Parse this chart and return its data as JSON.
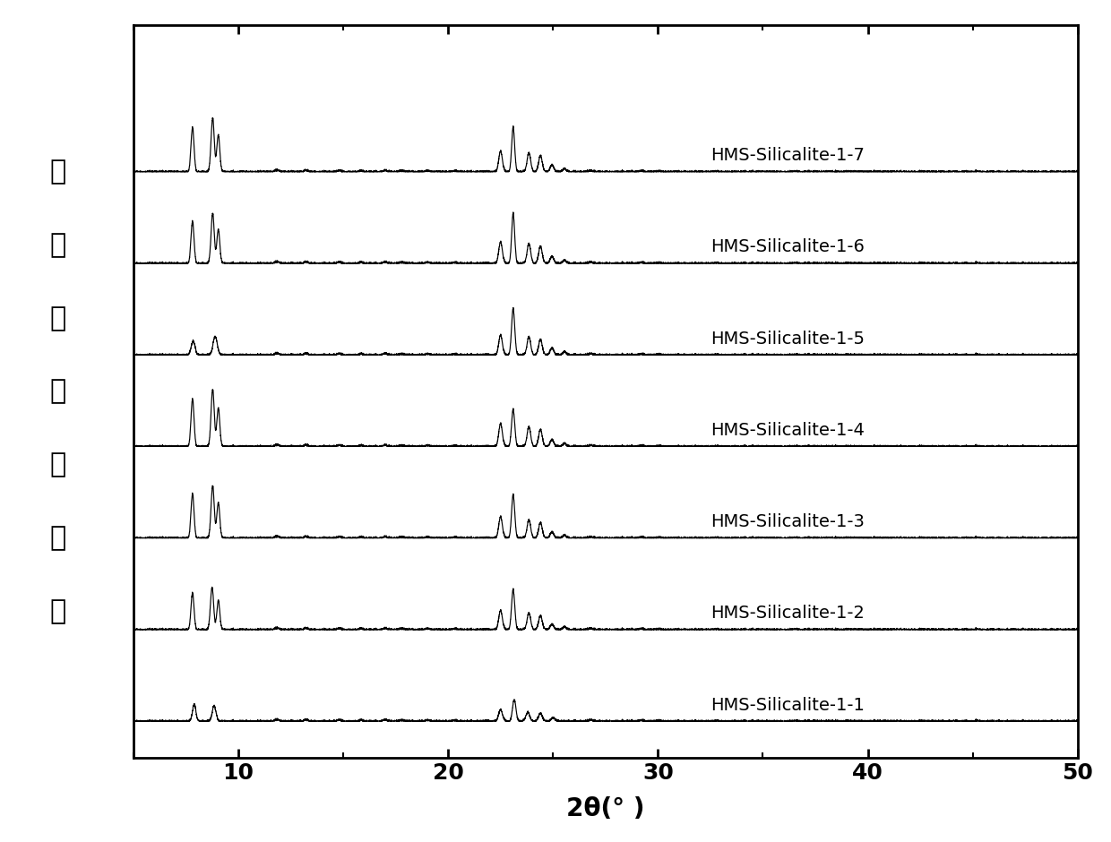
{
  "xlabel": "2θ(° )",
  "ylabel_chars": [
    "折",
    "射",
    "峰",
    "相",
    "对",
    "强",
    "度"
  ],
  "xlim": [
    5,
    50
  ],
  "ylim": [
    -0.5,
    9.5
  ],
  "xticks": [
    10,
    20,
    30,
    40,
    50
  ],
  "labels": [
    "HMS-Silicalite-1-1",
    "HMS-Silicalite-1-2",
    "HMS-Silicalite-1-3",
    "HMS-Silicalite-1-4",
    "HMS-Silicalite-1-5",
    "HMS-Silicalite-1-6",
    "HMS-Silicalite-1-7"
  ],
  "offsets": [
    0.0,
    1.25,
    2.5,
    3.75,
    5.0,
    6.25,
    7.5
  ],
  "line_color": "#000000",
  "background_color": "#ffffff",
  "font_size_label": 20,
  "font_size_tick": 18,
  "font_size_annotation": 14
}
